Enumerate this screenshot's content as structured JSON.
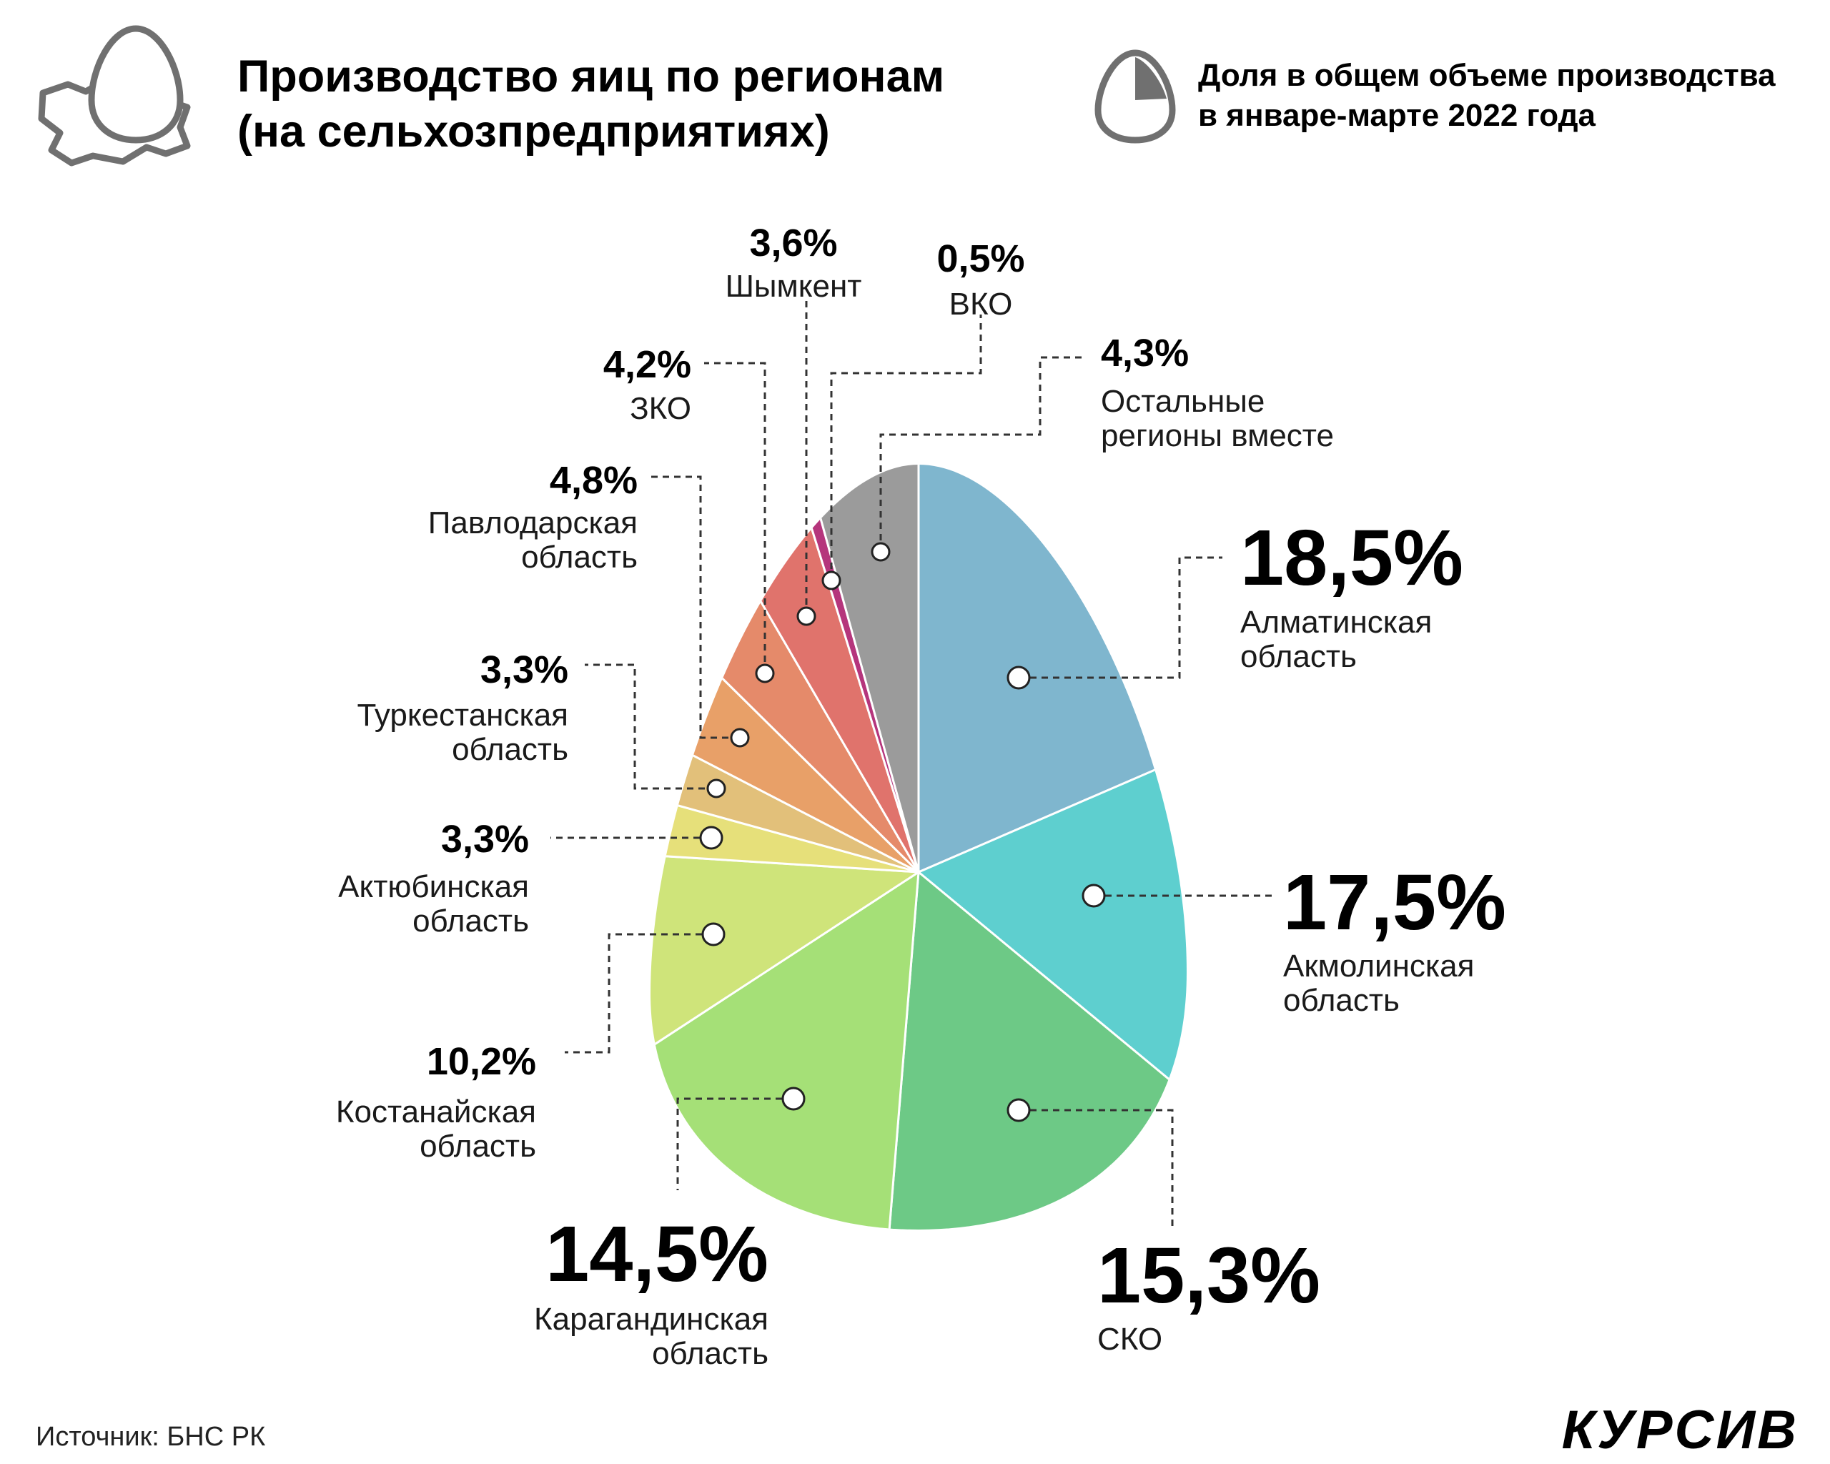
{
  "title_line1": "Производство яиц по регионам",
  "title_line2": "(на сельхозпредприятиях)",
  "subtitle_line1": "Доля в общем объеме производства",
  "subtitle_line2": "в январе-марте 2022 года",
  "source": "Источник: БНС РК",
  "logo": "КУРСИВ",
  "icons": {
    "header": "map-egg-icon",
    "subtitle": "pie-egg-icon"
  },
  "chart_data": {
    "type": "pie",
    "unit": "%",
    "start_angle": "12 o'clock",
    "direction": "clockwise",
    "slices": [
      {
        "name": "Алматинская область",
        "lines": [
          "Алматинская",
          "область"
        ],
        "label": "18,5%",
        "value": 18.5,
        "color": "#7fb6ce"
      },
      {
        "name": "Акмолинская область",
        "lines": [
          "Акмолинская",
          "область"
        ],
        "label": "17,5%",
        "value": 17.5,
        "color": "#5ecfcf"
      },
      {
        "name": "СКО",
        "lines": [
          "СКО"
        ],
        "label": "15,3%",
        "value": 15.3,
        "color": "#6dc986"
      },
      {
        "name": "Карагандинская область",
        "lines": [
          "Карагандинская",
          "область"
        ],
        "label": "14,5%",
        "value": 14.5,
        "color": "#a5e077"
      },
      {
        "name": "Костанайская область",
        "lines": [
          "Костанайская",
          "область"
        ],
        "label": "10,2%",
        "value": 10.2,
        "color": "#cfe47a"
      },
      {
        "name": "Актюбинская область",
        "lines": [
          "Актюбинская",
          "область"
        ],
        "label": "3,3%",
        "value": 3.3,
        "color": "#e6e07a"
      },
      {
        "name": "Туркестанская область",
        "lines": [
          "Туркестанская",
          "область"
        ],
        "label": "3,3%",
        "value": 3.3,
        "color": "#e2c07a"
      },
      {
        "name": "Павлодарская область",
        "lines": [
          "Павлодарская",
          "область"
        ],
        "label": "4,8%",
        "value": 4.8,
        "color": "#e8a068"
      },
      {
        "name": "ЗКО",
        "lines": [
          "ЗКО"
        ],
        "label": "4,2%",
        "value": 4.2,
        "color": "#e58a6a"
      },
      {
        "name": "Шымкент",
        "lines": [
          "Шымкент"
        ],
        "label": "3,6%",
        "value": 3.6,
        "color": "#e0736c"
      },
      {
        "name": "ВКО",
        "lines": [
          "ВКО"
        ],
        "label": "0,5%",
        "value": 0.5,
        "color": "#b5357c"
      },
      {
        "name": "Остальные регионы вместе",
        "lines": [
          "Остальные",
          "регионы вместе"
        ],
        "label": "4,3%",
        "value": 4.3,
        "color": "#9b9b9b"
      }
    ]
  }
}
